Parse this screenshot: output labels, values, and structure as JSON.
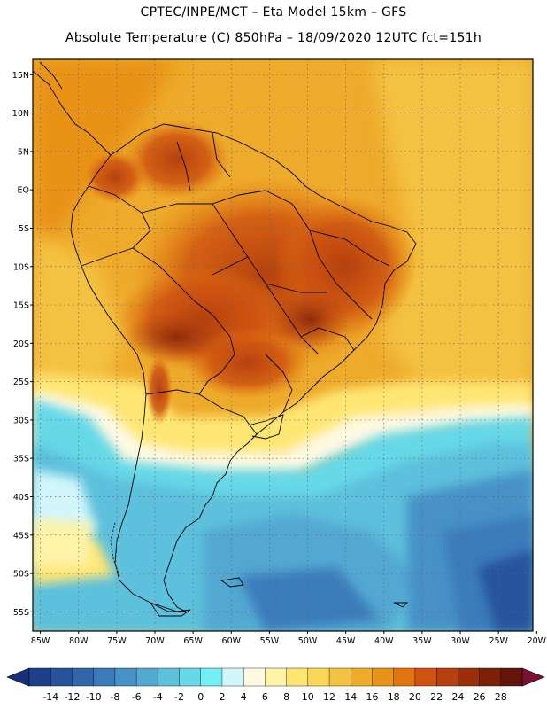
{
  "header": {
    "line1": "CPTEC/INPE/MCT –  Eta Model 15km – GFS",
    "line2": "Absolute Temperature (C) 850hPa – 18/09/2020 12UTC fct=151h"
  },
  "map": {
    "lat_labels": [
      "15N",
      "10N",
      "5N",
      "EQ",
      "5S",
      "10S",
      "15S",
      "20S",
      "25S",
      "30S",
      "35S",
      "40S",
      "45S",
      "50S",
      "55S"
    ],
    "lat_values": [
      15,
      10,
      5,
      0,
      -5,
      -10,
      -15,
      -20,
      -25,
      -30,
      -35,
      -40,
      -45,
      -50,
      -55
    ],
    "lon_labels": [
      "85W",
      "80W",
      "75W",
      "70W",
      "65W",
      "60W",
      "55W",
      "50W",
      "45W",
      "40W",
      "35W",
      "30W",
      "25W",
      "20W"
    ],
    "lon_values": [
      -85,
      -80,
      -75,
      -70,
      -65,
      -60,
      -55,
      -50,
      -45,
      -40,
      -35,
      -30,
      -25,
      -20
    ],
    "lat_range": [
      -57.5,
      17
    ],
    "lon_range": [
      -86,
      -20.5
    ]
  },
  "colorbar": {
    "labels": [
      "-14",
      "-12",
      "-10",
      "-8",
      "-6",
      "-4",
      "-2",
      "0",
      "2",
      "4",
      "6",
      "8",
      "10",
      "12",
      "14",
      "16",
      "18",
      "20",
      "22",
      "24",
      "26",
      "28"
    ],
    "colors": [
      "#1e3f8c",
      "#28529c",
      "#3166ab",
      "#3b7bbb",
      "#4791c7",
      "#53a8d2",
      "#5dc0dc",
      "#66d8e8",
      "#73f0f5",
      "#d2f6fb",
      "#fff9e2",
      "#fff3a8",
      "#ffe673",
      "#fbd65b",
      "#f4c243",
      "#eeaa2a",
      "#e89218",
      "#e07410",
      "#cf5410",
      "#b6400e",
      "#9c2e0a",
      "#7e2008",
      "#63150a"
    ],
    "under_color": "#1a2f7a",
    "over_color": "#7a1032"
  }
}
